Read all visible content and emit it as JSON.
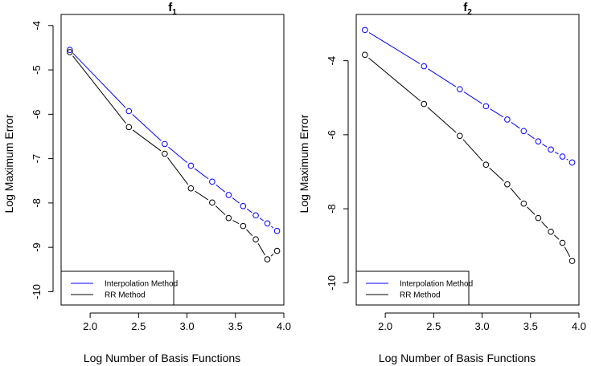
{
  "chart_data": [
    {
      "type": "line",
      "title": "f",
      "title_subscript": "1",
      "xlabel": "Log Number of Basis Functions",
      "ylabel": "Log Maximum Error",
      "xlim": [
        1.7,
        4.0
      ],
      "ylim": [
        -10.3,
        -3.75
      ],
      "x_ticks": [
        "2.0",
        "2.5",
        "3.0",
        "3.5",
        "4.0"
      ],
      "y_ticks": [
        "-10",
        "-9",
        "-8",
        "-7",
        "-6",
        "-5",
        "-4"
      ],
      "legend_position": "bottom-left",
      "x": [
        1.79,
        2.4,
        2.77,
        3.04,
        3.26,
        3.43,
        3.58,
        3.71,
        3.83,
        3.93
      ],
      "series": [
        {
          "name": "Interpolation Method",
          "color": "#0000ff",
          "values": [
            -4.55,
            -5.93,
            -6.67,
            -7.16,
            -7.52,
            -7.82,
            -8.07,
            -8.28,
            -8.46,
            -8.63
          ]
        },
        {
          "name": "RR Method",
          "color": "#000000",
          "values": [
            -4.6,
            -6.29,
            -6.89,
            -7.67,
            -7.99,
            -8.34,
            -8.52,
            -8.82,
            -9.27,
            -9.08
          ]
        }
      ]
    },
    {
      "type": "line",
      "title": "f",
      "title_subscript": "2",
      "xlabel": "Log Number of Basis Functions",
      "ylabel": "Log Maximum Error",
      "xlim": [
        1.7,
        4.0
      ],
      "ylim": [
        -10.6,
        -2.75
      ],
      "x_ticks": [
        "2.0",
        "2.5",
        "3.0",
        "3.5",
        "4.0"
      ],
      "y_ticks": [
        "-10",
        "-8",
        "-6",
        "-4"
      ],
      "legend_position": "bottom-left",
      "x": [
        1.79,
        2.4,
        2.77,
        3.04,
        3.26,
        3.43,
        3.58,
        3.71,
        3.83,
        3.93
      ],
      "series": [
        {
          "name": "Interpolation Method",
          "color": "#0000ff",
          "values": [
            -3.17,
            -4.15,
            -4.77,
            -5.23,
            -5.59,
            -5.9,
            -6.18,
            -6.4,
            -6.59,
            -6.75
          ]
        },
        {
          "name": "RR Method",
          "color": "#000000",
          "values": [
            -3.84,
            -5.17,
            -6.03,
            -6.81,
            -7.34,
            -7.86,
            -8.25,
            -8.62,
            -8.92,
            -9.41
          ]
        }
      ]
    }
  ]
}
